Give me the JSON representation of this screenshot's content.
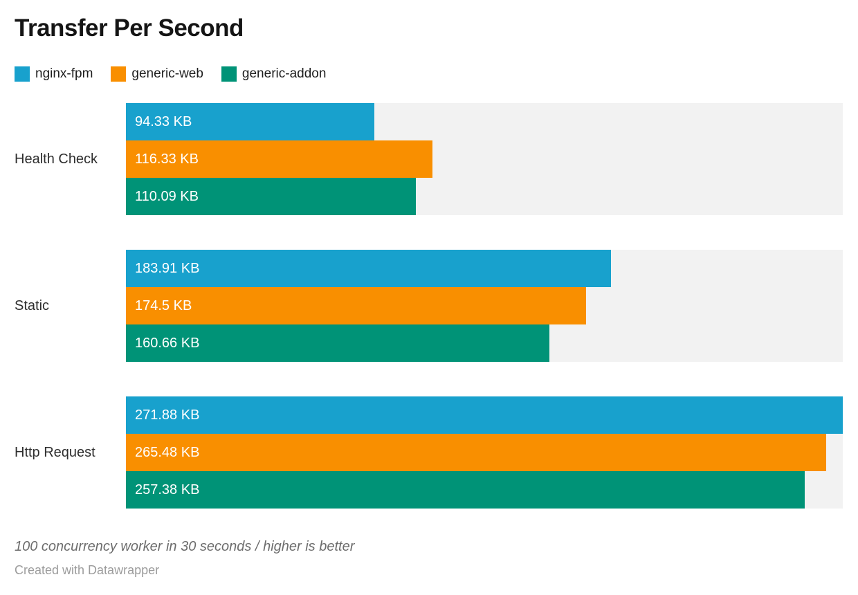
{
  "title": "Transfer Per Second",
  "footer": {
    "note": "100 concurrency worker in 30 seconds / higher is better",
    "attribution": "Created with Datawrapper"
  },
  "chart_data": {
    "type": "bar",
    "orientation": "horizontal",
    "unit": "KB",
    "title": "Transfer Per Second",
    "categories": [
      "Health Check",
      "Static",
      "Http Request"
    ],
    "series": [
      {
        "name": "nginx-fpm",
        "color": "#18a1cd",
        "values": [
          94.33,
          183.91,
          271.88
        ],
        "value_labels": [
          "94.33 KB",
          "183.91 KB",
          "271.88 KB"
        ]
      },
      {
        "name": "generic-web",
        "color": "#f98f00",
        "values": [
          116.33,
          174.5,
          265.48
        ],
        "value_labels": [
          "116.33 KB",
          "174.5 KB",
          "265.48 KB"
        ]
      },
      {
        "name": "generic-addon",
        "color": "#009377",
        "values": [
          110.09,
          160.66,
          257.38
        ],
        "value_labels": [
          "110.09 KB",
          "160.66 KB",
          "257.38 KB"
        ]
      }
    ],
    "xlim": [
      0,
      271.88
    ],
    "track_color": "#f2f2f2",
    "grid": false,
    "legend_position": "top",
    "value_label_position": "inside-left",
    "value_label_color": "#ffffff"
  }
}
